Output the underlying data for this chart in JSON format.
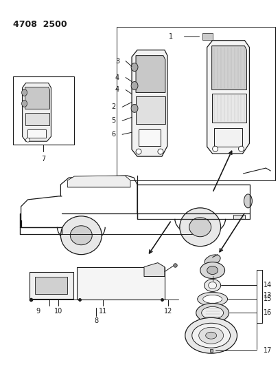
{
  "title": "4708 2500",
  "bg": "#ffffff",
  "lc": "#1a1a1a",
  "fig_w": 4.08,
  "fig_h": 5.33,
  "dpi": 100
}
